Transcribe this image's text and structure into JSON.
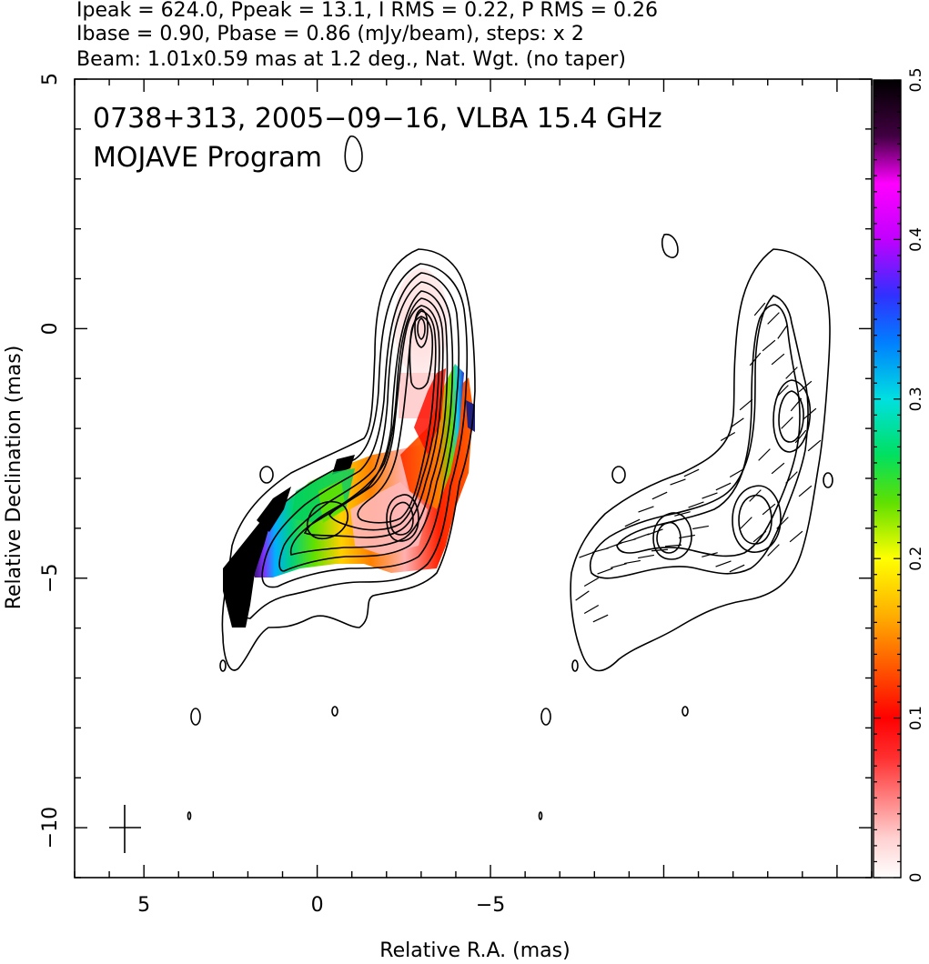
{
  "header": {
    "line1": "Ipeak = 624.0, Ppeak = 13.1, I RMS = 0.22, P RMS = 0.26",
    "line2": "Ibase = 0.90, Pbase = 0.86 (mJy/beam), steps: x 2",
    "line3": "Beam: 1.01x0.59 mas at 1.2 deg., Nat. Wgt. (no taper)"
  },
  "annotations": {
    "source_line": "0738+313, 2005−09−16, VLBA 15.4 GHz",
    "program_line": "MOJAVE Program"
  },
  "chart_data": {
    "type": "heatmap",
    "xlabel": "Relative R.A. (mas)",
    "ylabel": "Relative Declination (mas)",
    "xlim": [
      7,
      -16
    ],
    "ylim": [
      -11,
      5
    ],
    "x_ticks": [
      5,
      0,
      -5
    ],
    "x_tick_labels": [
      "5",
      "0",
      "−5"
    ],
    "y_ticks": [
      5,
      0,
      -5,
      -10
    ],
    "y_tick_labels": [
      "5",
      "0",
      "−5",
      "−10"
    ],
    "colorbar": {
      "range": [
        0,
        0.5
      ],
      "ticks": [
        0,
        0.1,
        0.2,
        0.3,
        0.4,
        0.5
      ],
      "tick_labels": [
        "0",
        "0.1",
        "0.2",
        "0.3",
        "0.4",
        "0.5"
      ]
    },
    "beam": {
      "major_mas": 1.01,
      "minor_mas": 0.59,
      "pa_deg": 1.2
    },
    "stokes_i": {
      "peak_mJy_per_beam": 624.0,
      "rms": 0.22,
      "base": 0.9,
      "contour_step_factor": 2
    },
    "polarization": {
      "peak_mJy_per_beam": 13.1,
      "rms": 0.26,
      "base": 0.86
    },
    "left_panel_offset_mas": 0,
    "right_panel_offset_mas": -7
  }
}
